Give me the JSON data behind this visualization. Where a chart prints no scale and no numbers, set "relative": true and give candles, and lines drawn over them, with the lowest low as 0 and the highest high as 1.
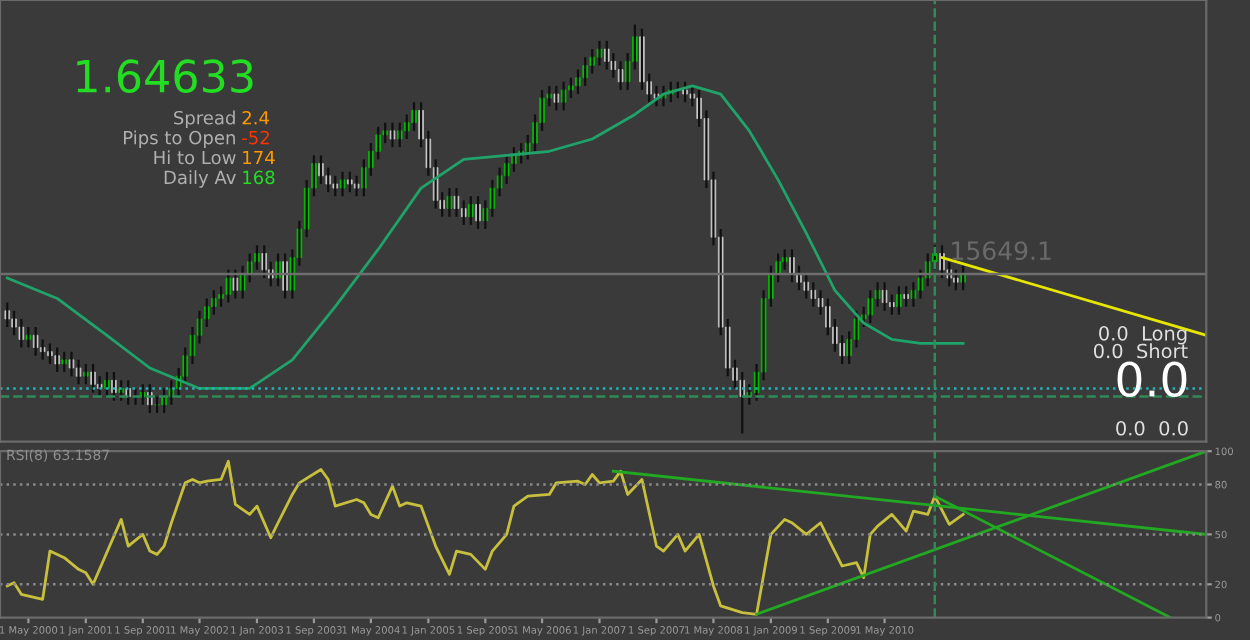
{
  "chart_data": [
    {
      "type": "candlestick",
      "relative": true,
      "x": [
        "2000-02",
        "2000-03",
        "2000-04",
        "2000-05",
        "2000-06",
        "2000-07",
        "2000-08",
        "2000-09",
        "2000-10",
        "2000-11",
        "2000-12",
        "2001-01",
        "2001-02",
        "2001-03",
        "2001-04",
        "2001-05",
        "2001-06",
        "2001-07",
        "2001-08",
        "2001-09",
        "2001-10",
        "2001-11",
        "2001-12",
        "2002-01",
        "2002-02",
        "2002-03",
        "2002-04",
        "2002-05",
        "2002-06",
        "2002-07",
        "2002-08",
        "2002-09",
        "2002-10",
        "2002-11",
        "2002-12",
        "2003-01",
        "2003-02",
        "2003-03",
        "2003-04",
        "2003-05",
        "2003-06",
        "2003-07",
        "2003-08",
        "2003-09",
        "2003-10",
        "2003-11",
        "2003-12",
        "2004-01",
        "2004-02",
        "2004-03",
        "2004-04",
        "2004-05",
        "2004-06",
        "2004-07",
        "2004-08",
        "2004-09",
        "2004-10",
        "2004-11",
        "2004-12",
        "2005-01",
        "2005-02",
        "2005-03",
        "2005-04",
        "2005-05",
        "2005-06",
        "2005-07",
        "2005-08",
        "2005-09",
        "2005-10",
        "2005-11",
        "2005-12",
        "2006-01",
        "2006-02",
        "2006-03",
        "2006-04",
        "2006-05",
        "2006-06",
        "2006-07",
        "2006-08",
        "2006-09",
        "2006-10",
        "2006-11",
        "2006-12",
        "2007-01",
        "2007-02",
        "2007-03",
        "2007-04",
        "2007-05",
        "2007-06",
        "2007-07",
        "2007-08",
        "2007-09",
        "2007-10",
        "2007-11",
        "2007-12",
        "2008-01",
        "2008-02",
        "2008-03",
        "2008-04",
        "2008-05",
        "2008-06",
        "2008-07",
        "2008-08",
        "2008-09",
        "2008-10",
        "2008-11",
        "2008-12",
        "2009-01",
        "2009-02",
        "2009-03",
        "2009-04",
        "2009-05",
        "2009-06",
        "2009-07",
        "2009-08",
        "2009-09",
        "2009-10",
        "2009-11",
        "2009-12",
        "2010-01",
        "2010-02",
        "2010-03",
        "2010-04",
        "2010-05",
        "2010-06",
        "2010-07",
        "2010-08",
        "2010-09",
        "2010-10",
        "2010-11",
        "2010-12",
        "2011-01",
        "2011-02",
        "2011-03",
        "2011-04"
      ],
      "ohlc": [
        [
          0.3,
          0.32,
          0.26,
          0.28
        ],
        [
          0.28,
          0.3,
          0.24,
          0.26
        ],
        [
          0.26,
          0.28,
          0.21,
          0.23
        ],
        [
          0.23,
          0.26,
          0.21,
          0.24
        ],
        [
          0.24,
          0.26,
          0.19,
          0.21
        ],
        [
          0.21,
          0.23,
          0.18,
          0.2
        ],
        [
          0.2,
          0.22,
          0.17,
          0.19
        ],
        [
          0.19,
          0.21,
          0.15,
          0.17
        ],
        [
          0.17,
          0.2,
          0.15,
          0.18
        ],
        [
          0.18,
          0.2,
          0.14,
          0.16
        ],
        [
          0.16,
          0.18,
          0.12,
          0.14
        ],
        [
          0.14,
          0.17,
          0.12,
          0.15
        ],
        [
          0.15,
          0.17,
          0.1,
          0.12
        ],
        [
          0.12,
          0.14,
          0.09,
          0.11
        ],
        [
          0.11,
          0.15,
          0.09,
          0.13
        ],
        [
          0.13,
          0.15,
          0.08,
          0.1
        ],
        [
          0.1,
          0.13,
          0.08,
          0.11
        ],
        [
          0.11,
          0.13,
          0.07,
          0.09
        ],
        [
          0.09,
          0.11,
          0.07,
          0.09
        ],
        [
          0.09,
          0.12,
          0.07,
          0.1
        ],
        [
          0.1,
          0.12,
          0.05,
          0.07
        ],
        [
          0.07,
          0.09,
          0.05,
          0.07
        ],
        [
          0.07,
          0.11,
          0.05,
          0.09
        ],
        [
          0.09,
          0.13,
          0.07,
          0.11
        ],
        [
          0.11,
          0.16,
          0.09,
          0.14
        ],
        [
          0.14,
          0.21,
          0.12,
          0.19
        ],
        [
          0.19,
          0.26,
          0.17,
          0.24
        ],
        [
          0.24,
          0.3,
          0.22,
          0.28
        ],
        [
          0.28,
          0.33,
          0.26,
          0.31
        ],
        [
          0.31,
          0.35,
          0.29,
          0.33
        ],
        [
          0.33,
          0.36,
          0.31,
          0.34
        ],
        [
          0.34,
          0.4,
          0.32,
          0.38
        ],
        [
          0.38,
          0.4,
          0.33,
          0.35
        ],
        [
          0.35,
          0.41,
          0.33,
          0.39
        ],
        [
          0.39,
          0.44,
          0.37,
          0.42
        ],
        [
          0.42,
          0.46,
          0.4,
          0.44
        ],
        [
          0.44,
          0.46,
          0.38,
          0.4
        ],
        [
          0.4,
          0.42,
          0.36,
          0.38
        ],
        [
          0.38,
          0.44,
          0.36,
          0.42
        ],
        [
          0.42,
          0.44,
          0.33,
          0.35
        ],
        [
          0.35,
          0.45,
          0.33,
          0.43
        ],
        [
          0.43,
          0.52,
          0.41,
          0.5
        ],
        [
          0.5,
          0.62,
          0.48,
          0.6
        ],
        [
          0.6,
          0.68,
          0.58,
          0.66
        ],
        [
          0.66,
          0.68,
          0.61,
          0.63
        ],
        [
          0.63,
          0.65,
          0.59,
          0.61
        ],
        [
          0.61,
          0.63,
          0.58,
          0.6
        ],
        [
          0.6,
          0.64,
          0.58,
          0.62
        ],
        [
          0.62,
          0.64,
          0.59,
          0.61
        ],
        [
          0.61,
          0.63,
          0.58,
          0.6
        ],
        [
          0.6,
          0.67,
          0.58,
          0.65
        ],
        [
          0.65,
          0.71,
          0.63,
          0.69
        ],
        [
          0.69,
          0.75,
          0.67,
          0.73
        ],
        [
          0.73,
          0.76,
          0.71,
          0.74
        ],
        [
          0.74,
          0.76,
          0.7,
          0.72
        ],
        [
          0.72,
          0.76,
          0.7,
          0.74
        ],
        [
          0.74,
          0.78,
          0.72,
          0.76
        ],
        [
          0.76,
          0.81,
          0.74,
          0.79
        ],
        [
          0.79,
          0.81,
          0.7,
          0.72
        ],
        [
          0.72,
          0.74,
          0.63,
          0.65
        ],
        [
          0.65,
          0.67,
          0.55,
          0.57
        ],
        [
          0.57,
          0.59,
          0.53,
          0.55
        ],
        [
          0.55,
          0.6,
          0.53,
          0.58
        ],
        [
          0.58,
          0.6,
          0.53,
          0.55
        ],
        [
          0.55,
          0.57,
          0.51,
          0.53
        ],
        [
          0.53,
          0.58,
          0.51,
          0.56
        ],
        [
          0.56,
          0.58,
          0.5,
          0.52
        ],
        [
          0.52,
          0.57,
          0.5,
          0.55
        ],
        [
          0.55,
          0.62,
          0.53,
          0.6
        ],
        [
          0.6,
          0.65,
          0.58,
          0.63
        ],
        [
          0.63,
          0.68,
          0.61,
          0.66
        ],
        [
          0.66,
          0.7,
          0.64,
          0.68
        ],
        [
          0.68,
          0.71,
          0.66,
          0.69
        ],
        [
          0.69,
          0.73,
          0.67,
          0.71
        ],
        [
          0.71,
          0.78,
          0.69,
          0.76
        ],
        [
          0.76,
          0.84,
          0.74,
          0.82
        ],
        [
          0.82,
          0.85,
          0.8,
          0.83
        ],
        [
          0.83,
          0.85,
          0.79,
          0.81
        ],
        [
          0.81,
          0.86,
          0.79,
          0.84
        ],
        [
          0.84,
          0.87,
          0.82,
          0.85
        ],
        [
          0.85,
          0.89,
          0.83,
          0.87
        ],
        [
          0.87,
          0.92,
          0.85,
          0.9
        ],
        [
          0.9,
          0.94,
          0.88,
          0.92
        ],
        [
          0.92,
          0.96,
          0.9,
          0.94
        ],
        [
          0.94,
          0.96,
          0.89,
          0.91
        ],
        [
          0.91,
          0.93,
          0.87,
          0.89
        ],
        [
          0.89,
          0.91,
          0.84,
          0.86
        ],
        [
          0.86,
          0.93,
          0.84,
          0.91
        ],
        [
          0.91,
          1.0,
          0.89,
          0.97
        ],
        [
          0.97,
          0.99,
          0.84,
          0.86
        ],
        [
          0.86,
          0.88,
          0.81,
          0.83
        ],
        [
          0.83,
          0.85,
          0.8,
          0.82
        ],
        [
          0.82,
          0.85,
          0.8,
          0.83
        ],
        [
          0.83,
          0.86,
          0.81,
          0.84
        ],
        [
          0.84,
          0.86,
          0.82,
          0.84
        ],
        [
          0.84,
          0.86,
          0.81,
          0.83
        ],
        [
          0.83,
          0.85,
          0.8,
          0.82
        ],
        [
          0.82,
          0.84,
          0.75,
          0.77
        ],
        [
          0.77,
          0.79,
          0.6,
          0.62
        ],
        [
          0.62,
          0.64,
          0.46,
          0.48
        ],
        [
          0.48,
          0.5,
          0.24,
          0.26
        ],
        [
          0.26,
          0.28,
          0.14,
          0.16
        ],
        [
          0.16,
          0.18,
          0.11,
          0.13
        ],
        [
          0.13,
          0.15,
          0.0,
          0.09
        ],
        [
          0.09,
          0.12,
          0.07,
          0.1
        ],
        [
          0.1,
          0.17,
          0.08,
          0.15
        ],
        [
          0.15,
          0.35,
          0.13,
          0.33
        ],
        [
          0.33,
          0.41,
          0.31,
          0.39
        ],
        [
          0.39,
          0.44,
          0.37,
          0.42
        ],
        [
          0.42,
          0.45,
          0.4,
          0.43
        ],
        [
          0.43,
          0.45,
          0.37,
          0.39
        ],
        [
          0.39,
          0.41,
          0.35,
          0.37
        ],
        [
          0.37,
          0.39,
          0.33,
          0.35
        ],
        [
          0.35,
          0.37,
          0.31,
          0.33
        ],
        [
          0.33,
          0.35,
          0.29,
          0.31
        ],
        [
          0.31,
          0.33,
          0.24,
          0.26
        ],
        [
          0.26,
          0.28,
          0.2,
          0.22
        ],
        [
          0.22,
          0.24,
          0.17,
          0.19
        ],
        [
          0.19,
          0.25,
          0.17,
          0.23
        ],
        [
          0.23,
          0.3,
          0.21,
          0.28
        ],
        [
          0.28,
          0.31,
          0.26,
          0.29
        ],
        [
          0.29,
          0.35,
          0.27,
          0.33
        ],
        [
          0.33,
          0.37,
          0.31,
          0.35
        ],
        [
          0.35,
          0.37,
          0.3,
          0.32
        ],
        [
          0.32,
          0.34,
          0.29,
          0.31
        ],
        [
          0.31,
          0.36,
          0.29,
          0.34
        ],
        [
          0.34,
          0.36,
          0.31,
          0.33
        ],
        [
          0.33,
          0.37,
          0.31,
          0.35
        ],
        [
          0.35,
          0.4,
          0.33,
          0.38
        ],
        [
          0.38,
          0.44,
          0.36,
          0.42
        ],
        [
          0.42,
          0.46,
          0.4,
          0.44
        ],
        [
          0.44,
          0.46,
          0.38,
          0.4
        ],
        [
          0.4,
          0.42,
          0.36,
          0.38
        ],
        [
          0.38,
          0.4,
          0.35,
          0.37
        ],
        [
          0.37,
          0.41,
          0.35,
          0.39
        ]
      ],
      "series": [
        {
          "type": "line",
          "color": "#1fa36b",
          "x": [
            "2000-02",
            "2000-09",
            "2001-04",
            "2001-10",
            "2002-05",
            "2002-12",
            "2003-06",
            "2003-12",
            "2004-06",
            "2004-12",
            "2005-06",
            "2005-12",
            "2006-06",
            "2006-12",
            "2007-06",
            "2007-10",
            "2008-02",
            "2008-06",
            "2008-10",
            "2009-02",
            "2009-06",
            "2009-10",
            "2010-02",
            "2010-06",
            "2010-10",
            "2011-04"
          ],
          "values": [
            0.38,
            0.33,
            0.24,
            0.16,
            0.11,
            0.11,
            0.18,
            0.31,
            0.45,
            0.6,
            0.67,
            0.68,
            0.69,
            0.72,
            0.78,
            0.83,
            0.85,
            0.83,
            0.74,
            0.62,
            0.49,
            0.35,
            0.27,
            0.23,
            0.22,
            0.22
          ]
        },
        {
          "type": "line",
          "color": "#e6e600",
          "x": [
            "2011-01",
            "2014-02"
          ],
          "values": [
            0.43,
            0.24
          ]
        }
      ],
      "ref_lines": [
        {
          "axis": "y",
          "value": 0.11,
          "color": "#22b5b5",
          "line_style": "dotted"
        },
        {
          "axis": "y",
          "value": 0.09,
          "color": "#2e8b57",
          "line_style": "dashed"
        },
        {
          "axis": "y",
          "value": 0.39,
          "color": "#6e6e6e",
          "line_style": "solid"
        },
        {
          "axis": "x",
          "value": "2010-12",
          "color": "#2e8b57",
          "line_style": "dashed"
        }
      ],
      "xlim": [
        "2000-01",
        "2014-02"
      ],
      "annotations": [
        "1.64633",
        "Spread",
        "2.4",
        "Pips to Open",
        "-52",
        "Hi to Low",
        "174",
        "Daily Av",
        "168",
        "15649.1",
        "0.0  Long",
        "0.0  Short",
        "0.0",
        "0.0  0.0"
      ]
    },
    {
      "type": "line",
      "xlim": [
        "2000-01",
        "2014-02"
      ],
      "ylim": [
        0,
        100
      ],
      "yticks": [
        0,
        20,
        50,
        80,
        100
      ],
      "xticks": [
        {
          "value": "2000-05",
          "label": "1 May 2000"
        },
        {
          "value": "2001-01",
          "label": "1 Jan 2001"
        },
        {
          "value": "2001-09",
          "label": "1 Sep 2001"
        },
        {
          "value": "2002-05",
          "label": "1 May 2002"
        },
        {
          "value": "2003-01",
          "label": "1 Jan 2003"
        },
        {
          "value": "2003-09",
          "label": "1 Sep 2003"
        },
        {
          "value": "2004-05",
          "label": "1 May 2004"
        },
        {
          "value": "2005-01",
          "label": "1 Jan 2005"
        },
        {
          "value": "2005-09",
          "label": "1 Sep 2005"
        },
        {
          "value": "2006-05",
          "label": "1 May 2006"
        },
        {
          "value": "2007-01",
          "label": "1 Jan 2007"
        },
        {
          "value": "2007-09",
          "label": "1 Sep 2007"
        },
        {
          "value": "2008-05",
          "label": "1 May 2008"
        },
        {
          "value": "2009-01",
          "label": "1 Jan 2009"
        },
        {
          "value": "2009-09",
          "label": "1 Sep 2009"
        },
        {
          "value": "2010-05",
          "label": "1 May 2010"
        }
      ],
      "series": [
        {
          "type": "line",
          "color": "#c8c03c",
          "x": [
            "2000-02",
            "2000-03",
            "2000-04",
            "2000-07",
            "2000-08",
            "2000-10",
            "2000-12",
            "2001-01",
            "2001-02",
            "2001-06",
            "2001-07",
            "2001-09",
            "2001-10",
            "2001-11",
            "2001-12",
            "2002-01",
            "2002-03",
            "2002-04",
            "2002-05",
            "2002-06",
            "2002-08",
            "2002-09",
            "2002-10",
            "2002-12",
            "2003-01",
            "2003-03",
            "2003-04",
            "2003-06",
            "2003-07",
            "2003-10",
            "2003-11",
            "2003-12",
            "2004-03",
            "2004-04",
            "2004-05",
            "2004-06",
            "2004-08",
            "2004-09",
            "2004-10",
            "2004-12",
            "2005-02",
            "2005-04",
            "2005-05",
            "2005-07",
            "2005-09",
            "2005-10",
            "2005-12",
            "2006-01",
            "2006-03",
            "2006-06",
            "2006-07",
            "2006-10",
            "2006-11",
            "2006-12",
            "2007-01",
            "2007-03",
            "2007-04",
            "2007-05",
            "2007-07",
            "2007-09",
            "2007-10",
            "2007-12",
            "2008-01",
            "2008-03",
            "2008-05",
            "2008-06",
            "2008-09",
            "2008-11",
            "2009-01",
            "2009-03",
            "2009-04",
            "2009-06",
            "2009-08",
            "2009-09",
            "2009-11",
            "2010-01",
            "2010-02",
            "2010-03",
            "2010-04",
            "2010-06",
            "2010-08",
            "2010-09",
            "2010-11",
            "2010-12",
            "2011-02",
            "2011-04"
          ],
          "values": [
            19,
            21,
            14,
            11,
            40,
            36,
            29,
            27,
            20,
            59,
            43,
            50,
            40,
            38,
            43,
            57,
            81,
            83,
            81,
            82,
            83,
            94,
            68,
            62,
            67,
            48,
            57,
            74,
            81,
            89,
            83,
            67,
            71,
            69,
            62,
            60,
            79,
            67,
            69,
            67,
            43,
            26,
            40,
            38,
            29,
            40,
            50,
            67,
            73,
            74,
            81,
            82,
            80,
            86,
            81,
            82,
            88,
            74,
            83,
            43,
            40,
            50,
            40,
            50,
            19,
            7,
            3,
            2,
            50,
            59,
            57,
            50,
            57,
            48,
            31,
            33,
            24,
            50,
            55,
            62,
            52,
            64,
            62,
            73,
            56,
            62
          ]
        },
        {
          "type": "line",
          "color": "#22a822",
          "x": [
            "2007-03",
            "2014-02"
          ],
          "values": [
            88,
            50
          ]
        },
        {
          "type": "line",
          "color": "#22a822",
          "x": [
            "2008-11",
            "2014-02"
          ],
          "values": [
            2,
            100
          ]
        },
        {
          "type": "line",
          "color": "#22a822",
          "x": [
            "2010-12",
            "2013-09"
          ],
          "values": [
            73,
            0
          ]
        }
      ],
      "ref_lines": [
        {
          "axis": "y",
          "value": 20,
          "color": "#8a8a8a",
          "line_style": "dotted"
        },
        {
          "axis": "y",
          "value": 50,
          "color": "#8a8a8a",
          "line_style": "dotted"
        },
        {
          "axis": "y",
          "value": 80,
          "color": "#8a8a8a",
          "line_style": "dotted"
        },
        {
          "axis": "x",
          "value": "2010-12",
          "color": "#2e8b57",
          "line_style": "dashed"
        }
      ],
      "annotations": [
        "RSI(8) 63.1587"
      ]
    }
  ]
}
